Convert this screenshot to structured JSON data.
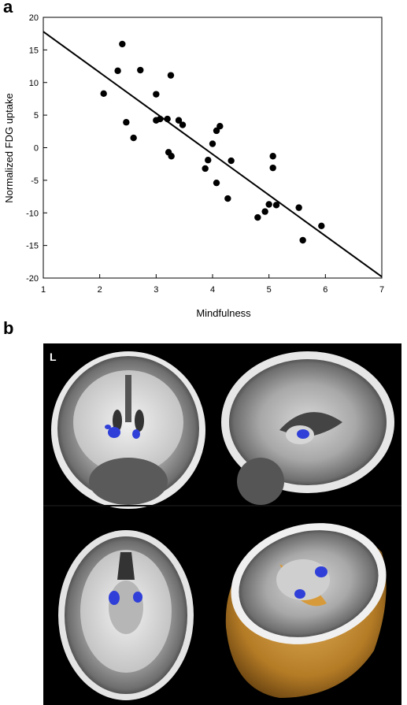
{
  "panels": {
    "a_label": "a",
    "b_label": "b"
  },
  "chart_data": {
    "type": "scatter",
    "title": "",
    "xlabel": "Mindfulness",
    "ylabel": "Normalized FDG uptake",
    "xlim": [
      1,
      7
    ],
    "ylim": [
      -20,
      20
    ],
    "xticks": [
      1,
      2,
      3,
      4,
      5,
      6,
      7
    ],
    "yticks": [
      20,
      15,
      10,
      5,
      0,
      -5,
      -10,
      -15,
      -20
    ],
    "grid": false,
    "regression_line": {
      "x": [
        1,
        7
      ],
      "y": [
        17.8,
        -19.8
      ]
    },
    "points": [
      [
        2.07,
        8.3
      ],
      [
        2.32,
        11.8
      ],
      [
        2.4,
        15.9
      ],
      [
        2.47,
        3.9
      ],
      [
        2.6,
        1.5
      ],
      [
        2.72,
        11.9
      ],
      [
        3.0,
        8.2
      ],
      [
        3.0,
        4.2
      ],
      [
        3.07,
        4.4
      ],
      [
        3.2,
        4.4
      ],
      [
        3.22,
        -0.7
      ],
      [
        3.26,
        11.1
      ],
      [
        3.27,
        -1.3
      ],
      [
        3.4,
        4.2
      ],
      [
        3.47,
        3.5
      ],
      [
        3.87,
        -3.2
      ],
      [
        3.92,
        -1.9
      ],
      [
        4.0,
        0.6
      ],
      [
        4.07,
        2.6
      ],
      [
        4.07,
        -5.4
      ],
      [
        4.13,
        3.3
      ],
      [
        4.27,
        -7.8
      ],
      [
        4.33,
        -2.0
      ],
      [
        4.8,
        -10.7
      ],
      [
        4.93,
        -9.8
      ],
      [
        5.0,
        -8.7
      ],
      [
        5.07,
        -1.3
      ],
      [
        5.07,
        -3.1
      ],
      [
        5.13,
        -8.8
      ],
      [
        5.53,
        -9.2
      ],
      [
        5.6,
        -14.2
      ],
      [
        5.93,
        -12.0
      ]
    ]
  },
  "mri": {
    "orientation_label": "L"
  }
}
